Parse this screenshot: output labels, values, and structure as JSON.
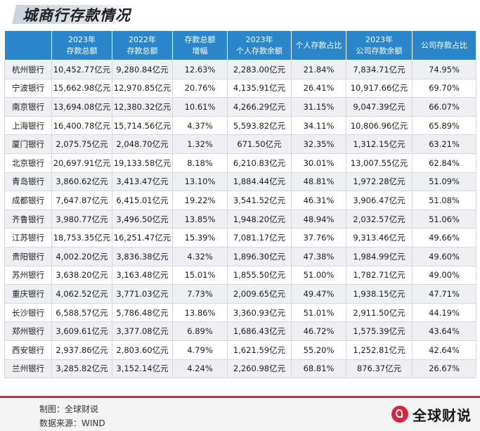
{
  "title": "城商行存款情况",
  "headers": [
    "",
    "2023年\n存款总额",
    "2022年\n存款总额",
    "存款总额\n增幅",
    "2023年\n个人存款余额",
    "个人存款占比",
    "2023年\n公司存款余额",
    "公司存款占比"
  ],
  "rows": [
    [
      "杭州银行",
      "10,452.77亿元",
      "9,280.84亿元",
      "12.63%",
      "2,283.00亿元",
      "21.84%",
      "7,834.71亿元",
      "74.95%"
    ],
    [
      "宁波银行",
      "15,662.98亿元",
      "12,970.85亿元",
      "20.76%",
      "4,135.91亿元",
      "26.41%",
      "10,917.66亿元",
      "69.70%"
    ],
    [
      "南京银行",
      "13,694.08亿元",
      "12,380.32亿元",
      "10.61%",
      "4,266.29亿元",
      "31.15%",
      "9,047.39亿元",
      "66.07%"
    ],
    [
      "上海银行",
      "16,400.78亿元",
      "15,714.56亿元",
      "4.37%",
      "5,593.82亿元",
      "34.11%",
      "10,806.96亿元",
      "65.89%"
    ],
    [
      "厦门银行",
      "2,075.75亿元",
      "2,048.70亿元",
      "1.32%",
      "671.50亿元",
      "32.35%",
      "1,312.15亿元",
      "63.21%"
    ],
    [
      "北京银行",
      "20,697.91亿元",
      "19,133.58亿元",
      "8.18%",
      "6,210.83亿元",
      "30.01%",
      "13,007.55亿元",
      "62.84%"
    ],
    [
      "青岛银行",
      "3,860.62亿元",
      "3,413.47亿元",
      "13.10%",
      "1,884.44亿元",
      "48.81%",
      "1,972.28亿元",
      "51.09%"
    ],
    [
      "成都银行",
      "7,647.87亿元",
      "6,415.01亿元",
      "19.22%",
      "3,541.52亿元",
      "46.31%",
      "3,906.47亿元",
      "51.08%"
    ],
    [
      "齐鲁银行",
      "3,980.77亿元",
      "3,496.50亿元",
      "13.85%",
      "1,948.20亿元",
      "48.94%",
      "2,032.57亿元",
      "51.06%"
    ],
    [
      "江苏银行",
      "18,753.35亿元",
      "16,251.47亿元",
      "15.39%",
      "7,081.17亿元",
      "37.76%",
      "9,313.46亿元",
      "49.66%"
    ],
    [
      "贵阳银行",
      "4,002.20亿元",
      "3,836.38亿元",
      "4.32%",
      "1,896.30亿元",
      "47.38%",
      "1,984.99亿元",
      "49.60%"
    ],
    [
      "苏州银行",
      "3,638.20亿元",
      "3,163.48亿元",
      "15.01%",
      "1,855.50亿元",
      "51.00%",
      "1,782.71亿元",
      "49.00%"
    ],
    [
      "重庆银行",
      "4,062.52亿元",
      "3,771.03亿元",
      "7.73%",
      "2,009.65亿元",
      "49.47%",
      "1,938.15亿元",
      "47.71%"
    ],
    [
      "长沙银行",
      "6,588.57亿元",
      "5,786.48亿元",
      "13.86%",
      "3,360.93亿元",
      "51.01%",
      "2,911.50亿元",
      "44.19%"
    ],
    [
      "郑州银行",
      "3,609.61亿元",
      "3,377.08亿元",
      "6.89%",
      "1,686.43亿元",
      "46.72%",
      "1,575.39亿元",
      "43.64%"
    ],
    [
      "西安银行",
      "2,937.86亿元",
      "2,803.60亿元",
      "4.79%",
      "1,621.59亿元",
      "55.20%",
      "1,252.81亿元",
      "42.64%"
    ],
    [
      "兰州银行",
      "3,285.82亿元",
      "3,152.14亿元",
      "4.24%",
      "2,260.98亿元",
      "68.81%",
      "876.37亿元",
      "26.67%"
    ]
  ],
  "footer": {
    "credit_maker": "制图：全球财说",
    "credit_source": "数据来源：WIND",
    "brand_name": "全球财说"
  },
  "colors": {
    "header_bg": "#2a86c9",
    "accent_red": "#d7263d",
    "row_alt": "#eef0f3"
  }
}
